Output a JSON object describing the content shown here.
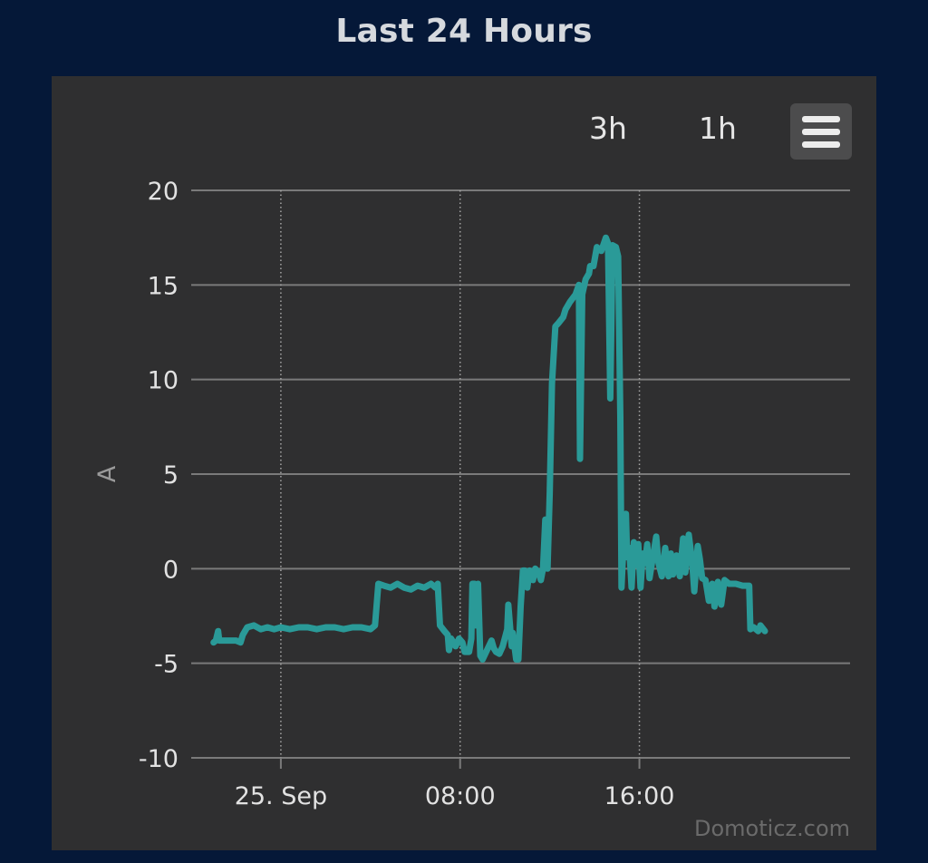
{
  "title": "Last 24 Hours",
  "toolbar": {
    "range_buttons": [
      "3h",
      "1h"
    ],
    "menu_icon": "hamburger-menu-icon"
  },
  "credits": "Domoticz.com",
  "colors": {
    "background": "#051838",
    "panel": "#2f2f30",
    "series": "#2a9a98",
    "grid": "#7a7a7a"
  },
  "chart_data": {
    "type": "line",
    "title": "Last 24 Hours",
    "ylabel": "A",
    "xlabel": "",
    "ylim": [
      -10,
      20
    ],
    "yticks": [
      20,
      15,
      10,
      5,
      0,
      -5,
      -10
    ],
    "x_unit": "hours since 25. Sep 00:00",
    "xlim": [
      -4.0,
      25.4
    ],
    "xticks": [
      {
        "x": 0,
        "label": "25. Sep"
      },
      {
        "x": 8,
        "label": "08:00"
      },
      {
        "x": 16,
        "label": "16:00"
      }
    ],
    "grid": {
      "horizontal": true,
      "vertical": "dotted"
    },
    "legend": "none",
    "series": [
      {
        "points": [
          [
            -3.0,
            -3.9
          ],
          [
            -2.9,
            -3.8
          ],
          [
            -2.8,
            -3.3
          ],
          [
            -2.75,
            -3.8
          ],
          [
            -2.6,
            -3.8
          ],
          [
            -2.0,
            -3.8
          ],
          [
            -1.8,
            -3.9
          ],
          [
            -1.7,
            -3.5
          ],
          [
            -1.5,
            -3.1
          ],
          [
            -1.2,
            -3.0
          ],
          [
            -0.9,
            -3.2
          ],
          [
            -0.6,
            -3.1
          ],
          [
            -0.3,
            -3.2
          ],
          [
            0.0,
            -3.1
          ],
          [
            0.4,
            -3.2
          ],
          [
            0.8,
            -3.1
          ],
          [
            1.2,
            -3.1
          ],
          [
            1.6,
            -3.2
          ],
          [
            2.0,
            -3.1
          ],
          [
            2.4,
            -3.1
          ],
          [
            2.8,
            -3.2
          ],
          [
            3.2,
            -3.1
          ],
          [
            3.6,
            -3.1
          ],
          [
            4.0,
            -3.2
          ],
          [
            4.2,
            -3.0
          ],
          [
            4.35,
            -0.8
          ],
          [
            4.6,
            -0.9
          ],
          [
            4.9,
            -1.0
          ],
          [
            5.2,
            -0.8
          ],
          [
            5.5,
            -1.0
          ],
          [
            5.8,
            -1.1
          ],
          [
            6.1,
            -0.9
          ],
          [
            6.4,
            -1.0
          ],
          [
            6.7,
            -0.8
          ],
          [
            6.9,
            -1.0
          ],
          [
            7.0,
            -0.8
          ],
          [
            7.1,
            -3.0
          ],
          [
            7.3,
            -3.3
          ],
          [
            7.45,
            -3.5
          ],
          [
            7.5,
            -4.3
          ],
          [
            7.6,
            -3.7
          ],
          [
            7.8,
            -4.1
          ],
          [
            7.95,
            -3.7
          ],
          [
            8.1,
            -3.9
          ],
          [
            8.2,
            -4.4
          ],
          [
            8.4,
            -4.4
          ],
          [
            8.5,
            -3.7
          ],
          [
            8.55,
            -0.8
          ],
          [
            8.65,
            -0.8
          ],
          [
            8.7,
            -3.0
          ],
          [
            8.8,
            -0.8
          ],
          [
            8.9,
            -4.6
          ],
          [
            9.0,
            -4.8
          ],
          [
            9.2,
            -4.3
          ],
          [
            9.4,
            -3.8
          ],
          [
            9.5,
            -4.2
          ],
          [
            9.6,
            -4.4
          ],
          [
            9.75,
            -4.5
          ],
          [
            9.9,
            -4.1
          ],
          [
            10.1,
            -3.2
          ],
          [
            10.15,
            -1.9
          ],
          [
            10.3,
            -4.1
          ],
          [
            10.35,
            -3.4
          ],
          [
            10.5,
            -4.8
          ],
          [
            10.6,
            -4.8
          ],
          [
            10.7,
            -2.0
          ],
          [
            10.8,
            -0.1
          ],
          [
            10.9,
            -0.1
          ],
          [
            11.0,
            -1.0
          ],
          [
            11.1,
            -0.1
          ],
          [
            11.25,
            -0.6
          ],
          [
            11.35,
            0.0
          ],
          [
            11.5,
            -0.2
          ],
          [
            11.6,
            -0.6
          ],
          [
            11.7,
            0.0
          ],
          [
            11.8,
            2.6
          ],
          [
            11.9,
            0.0
          ],
          [
            12.0,
            4.0
          ],
          [
            12.1,
            9.8
          ],
          [
            12.25,
            12.8
          ],
          [
            12.4,
            13.0
          ],
          [
            12.6,
            13.3
          ],
          [
            12.7,
            13.7
          ],
          [
            12.9,
            14.1
          ],
          [
            13.15,
            14.5
          ],
          [
            13.3,
            15.0
          ],
          [
            13.35,
            5.8
          ],
          [
            13.45,
            14.5
          ],
          [
            13.6,
            15.3
          ],
          [
            13.75,
            15.6
          ],
          [
            13.8,
            16.0
          ],
          [
            13.95,
            16.0
          ],
          [
            14.1,
            17.0
          ],
          [
            14.3,
            16.8
          ],
          [
            14.5,
            17.5
          ],
          [
            14.6,
            17.2
          ],
          [
            14.7,
            9.0
          ],
          [
            14.8,
            17.1
          ],
          [
            14.95,
            17.0
          ],
          [
            15.05,
            16.5
          ],
          [
            15.15,
            8.0
          ],
          [
            15.2,
            -1.0
          ],
          [
            15.3,
            1.5
          ],
          [
            15.4,
            2.9
          ],
          [
            15.45,
            0.6
          ],
          [
            15.55,
            1.1
          ],
          [
            15.65,
            -1.0
          ],
          [
            15.75,
            1.4
          ],
          [
            15.85,
            0.2
          ],
          [
            15.95,
            1.3
          ],
          [
            16.05,
            -1.0
          ],
          [
            16.15,
            0.8
          ],
          [
            16.25,
            0.3
          ],
          [
            16.35,
            1.3
          ],
          [
            16.45,
            -0.5
          ],
          [
            16.6,
            0.6
          ],
          [
            16.75,
            1.7
          ],
          [
            16.85,
            0.3
          ],
          [
            17.0,
            -0.4
          ],
          [
            17.15,
            1.1
          ],
          [
            17.3,
            -0.4
          ],
          [
            17.4,
            0.8
          ],
          [
            17.5,
            -0.3
          ],
          [
            17.65,
            0.7
          ],
          [
            17.8,
            -0.4
          ],
          [
            17.95,
            1.6
          ],
          [
            18.05,
            -0.2
          ],
          [
            18.2,
            1.8
          ],
          [
            18.35,
            0.4
          ],
          [
            18.45,
            -1.2
          ],
          [
            18.6,
            1.2
          ],
          [
            18.7,
            0.5
          ],
          [
            18.8,
            -0.5
          ],
          [
            18.95,
            -0.6
          ],
          [
            19.1,
            -1.7
          ],
          [
            19.25,
            -0.8
          ],
          [
            19.35,
            -2.0
          ],
          [
            19.5,
            -0.7
          ],
          [
            19.65,
            -1.9
          ],
          [
            19.8,
            -0.6
          ],
          [
            20.0,
            -0.8
          ],
          [
            20.3,
            -0.8
          ],
          [
            20.6,
            -0.9
          ],
          [
            20.9,
            -0.9
          ],
          [
            20.95,
            -3.2
          ],
          [
            21.1,
            -3.1
          ],
          [
            21.3,
            -3.3
          ],
          [
            21.4,
            -3.0
          ],
          [
            21.6,
            -3.3
          ]
        ]
      }
    ]
  }
}
